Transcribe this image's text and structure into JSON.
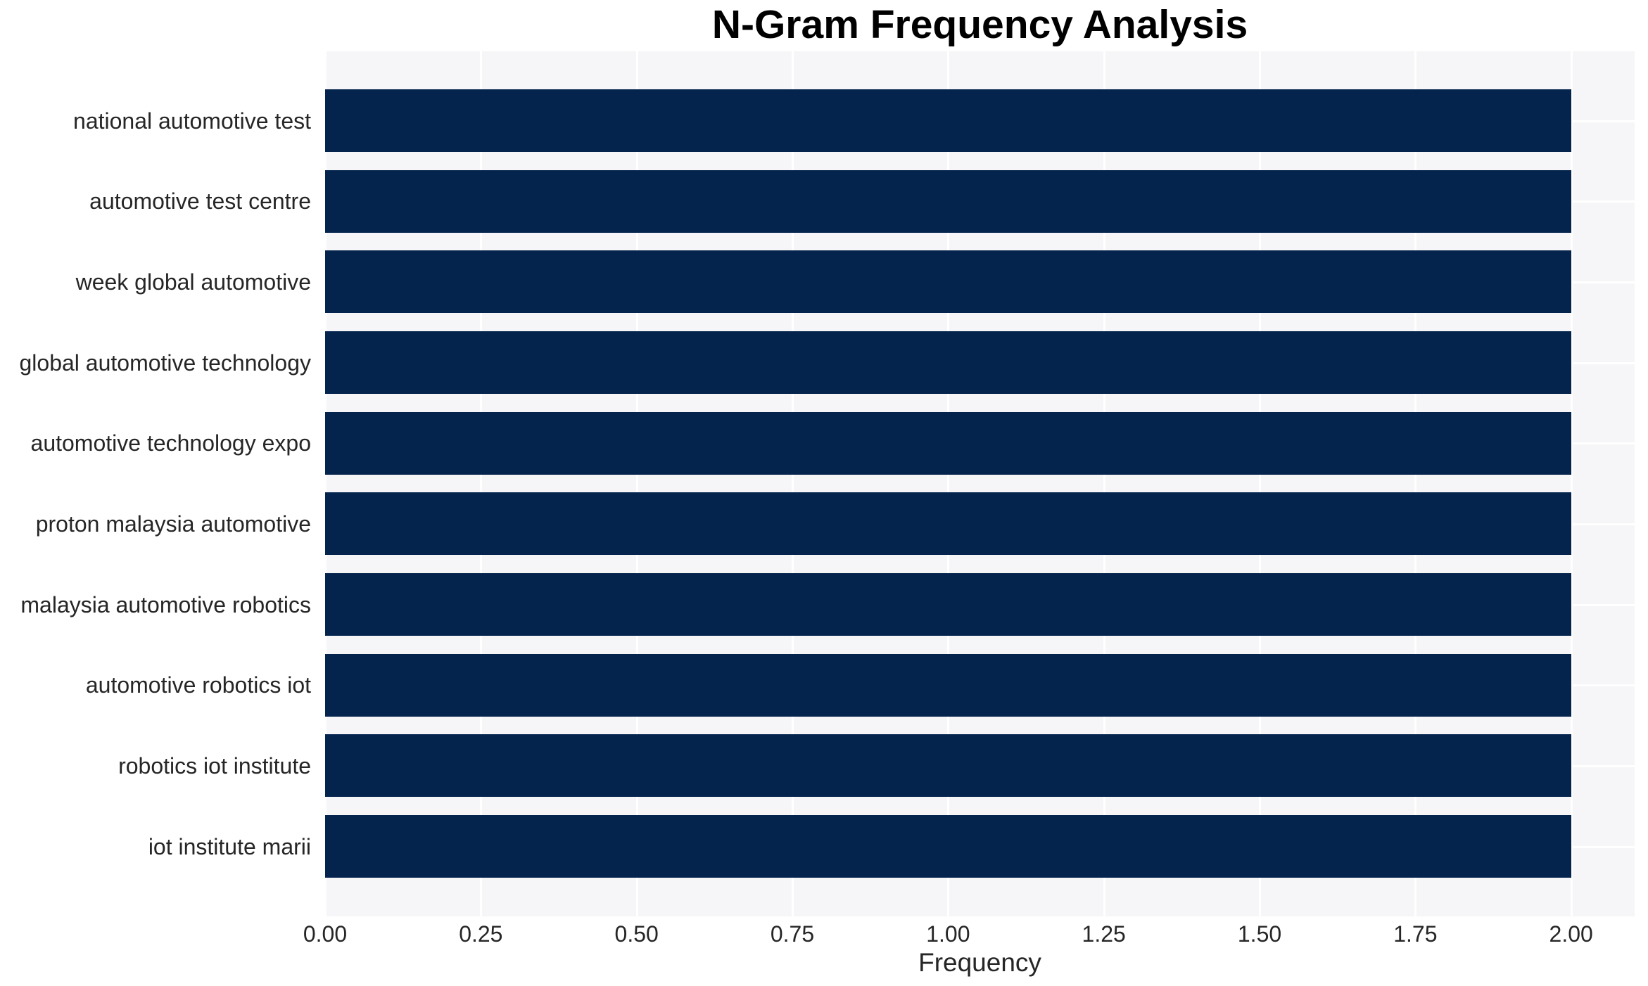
{
  "chart_data": {
    "type": "bar",
    "orientation": "horizontal",
    "title": "N-Gram Frequency Analysis",
    "xlabel": "Frequency",
    "ylabel": "",
    "categories": [
      "national automotive test",
      "automotive test centre",
      "week global automotive",
      "global automotive technology",
      "automotive technology expo",
      "proton malaysia automotive",
      "malaysia automotive robotics",
      "automotive robotics iot",
      "robotics iot institute",
      "iot institute marii"
    ],
    "values": [
      2,
      2,
      2,
      2,
      2,
      2,
      2,
      2,
      2,
      2
    ],
    "xticks": [
      0.0,
      0.25,
      0.5,
      0.75,
      1.0,
      1.25,
      1.5,
      1.75,
      2.0
    ],
    "xtick_labels": [
      "0.00",
      "0.25",
      "0.50",
      "0.75",
      "1.00",
      "1.25",
      "1.50",
      "1.75",
      "2.00"
    ],
    "xlim": [
      0,
      2.102
    ],
    "grid": true,
    "legend": false,
    "colors": {
      "bar": "#04234d",
      "plot_background": "#f6f6f8",
      "gridline": "#ffffff",
      "tick_text": "#262626",
      "title_text": "#000000"
    }
  }
}
